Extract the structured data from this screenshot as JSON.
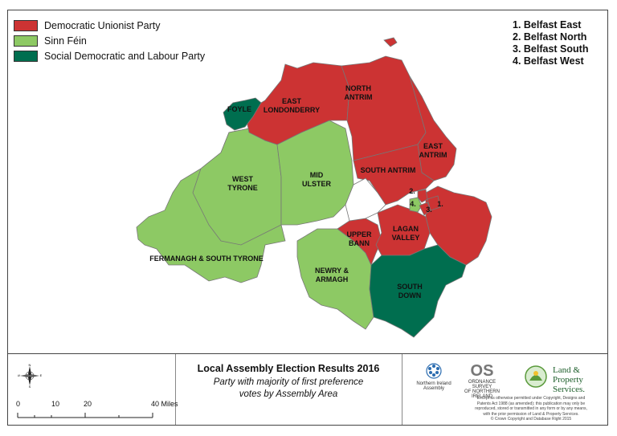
{
  "colors": {
    "dup": "#cc3333",
    "sf": "#8dc964",
    "sdlp": "#006e4f",
    "boundary": "#777777",
    "water": "#ffffff"
  },
  "legend": [
    {
      "label": "Democratic Unionist Party",
      "color": "#cc3333"
    },
    {
      "label": "Sinn Féin",
      "color": "#8dc964"
    },
    {
      "label": "Social Democratic and Labour Party",
      "color": "#006e4f"
    }
  ],
  "belfast_key": [
    "1. Belfast East",
    "2. Belfast North",
    "3. Belfast South",
    "4. Belfast West"
  ],
  "regions": {
    "foyle": {
      "label": "FOYLE",
      "party": "Social Democratic and Labour Party"
    },
    "east_londonderry": {
      "label1": "EAST",
      "label2": "LONDONDERRY",
      "party": "Democratic Unionist Party"
    },
    "north_antrim": {
      "label1": "NORTH",
      "label2": "ANTRIM",
      "party": "Democratic Unionist Party"
    },
    "east_antrim": {
      "label1": "EAST",
      "label2": "ANTRIM",
      "party": "Democratic Unionist Party"
    },
    "south_antrim": {
      "label": "SOUTH ANTRIM",
      "party": "Democratic Unionist Party"
    },
    "west_tyrone": {
      "label1": "WEST",
      "label2": "TYRONE",
      "party": "Sinn Féin"
    },
    "mid_ulster": {
      "label1": "MID",
      "label2": "ULSTER",
      "party": "Sinn Féin"
    },
    "fermanagh": {
      "label": "FERMANAGH & SOUTH TYRONE",
      "party": "Sinn Féin"
    },
    "upper_bann": {
      "label1": "UPPER",
      "label2": "BANN",
      "party": "Democratic Unionist Party"
    },
    "lagan_valley": {
      "label1": "LAGAN",
      "label2": "VALLEY",
      "party": "Democratic Unionist Party"
    },
    "newry_armagh": {
      "label1": "NEWRY &",
      "label2": "ARMAGH",
      "party": "Sinn Féin"
    },
    "south_down": {
      "label1": "SOUTH",
      "label2": "DOWN",
      "party": "Social Democratic and Labour Party"
    },
    "belfast_marks": [
      "1.",
      "2.",
      "3.",
      "4."
    ]
  },
  "title": "Local Assembly Election Results 2016",
  "subtitle_line1": "Party with majority of first preference",
  "subtitle_line2": "votes by Assembly Area",
  "compass": {
    "n": "N",
    "s": "S",
    "e": "E",
    "w": "W"
  },
  "scale": {
    "ticks": [
      "0",
      "10",
      "20",
      "40 Miles"
    ]
  },
  "logos": {
    "assembly_line1": "Northern Ireland",
    "assembly_line2": "Assembly",
    "os_mark": "OS",
    "os_line1": "ORDNANCE SURVEY",
    "os_line2": "OF NORTHERN IRELAND",
    "lps_line1": "Land &",
    "lps_line2": "Property",
    "lps_line3": "Services."
  },
  "copyright": [
    "Except as otherwise permitted under Copyright, Designs and",
    "Patents Act 1988 (as amended); this publication may only be",
    "reproduced, stored or transmitted in any form or by any means,",
    "with the prior permission of Land & Property Services.",
    "© Crown Copyright and Database Right 2015"
  ]
}
